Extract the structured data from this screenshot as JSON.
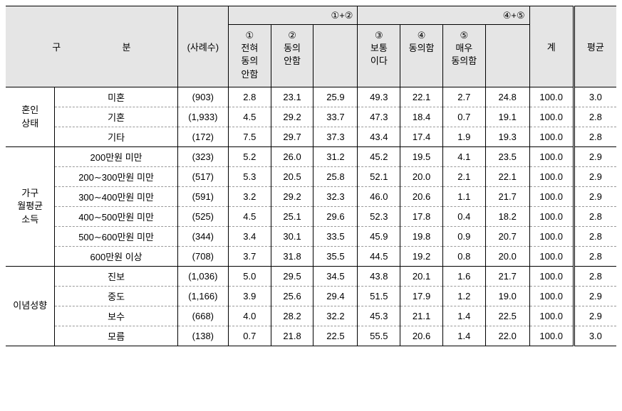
{
  "header": {
    "category_left": "구",
    "category_right": "분",
    "n_cases": "(사례수)",
    "col1": "①\n전혀\n동의\n안함",
    "col2": "②\n동의\n안함",
    "sum12": "①+②",
    "col3": "③\n보통\n이다",
    "col4": "④\n동의함",
    "col5": "⑤\n매우\n동의함",
    "sum45": "④+⑤",
    "total": "계",
    "avg": "평균"
  },
  "groups": [
    {
      "label": "혼인\n상태",
      "rows": [
        {
          "sub": "미혼",
          "n": "(903)",
          "v1": "2.8",
          "v2": "23.1",
          "s12": "25.9",
          "v3": "49.3",
          "v4": "22.1",
          "v5": "2.7",
          "s45": "24.8",
          "tot": "100.0",
          "avg": "3.0"
        },
        {
          "sub": "기혼",
          "n": "(1,933)",
          "v1": "4.5",
          "v2": "29.2",
          "s12": "33.7",
          "v3": "47.3",
          "v4": "18.4",
          "v5": "0.7",
          "s45": "19.1",
          "tot": "100.0",
          "avg": "2.8"
        },
        {
          "sub": "기타",
          "n": "(172)",
          "v1": "7.5",
          "v2": "29.7",
          "s12": "37.3",
          "v3": "43.4",
          "v4": "17.4",
          "v5": "1.9",
          "s45": "19.3",
          "tot": "100.0",
          "avg": "2.8"
        }
      ]
    },
    {
      "label": "가구\n월평균\n소득",
      "rows": [
        {
          "sub": "200만원 미만",
          "n": "(323)",
          "v1": "5.2",
          "v2": "26.0",
          "s12": "31.2",
          "v3": "45.2",
          "v4": "19.5",
          "v5": "4.1",
          "s45": "23.5",
          "tot": "100.0",
          "avg": "2.9"
        },
        {
          "sub": "200∼300만원 미만",
          "n": "(517)",
          "v1": "5.3",
          "v2": "20.5",
          "s12": "25.8",
          "v3": "52.1",
          "v4": "20.0",
          "v5": "2.1",
          "s45": "22.1",
          "tot": "100.0",
          "avg": "2.9"
        },
        {
          "sub": "300∼400만원 미만",
          "n": "(591)",
          "v1": "3.2",
          "v2": "29.2",
          "s12": "32.3",
          "v3": "46.0",
          "v4": "20.6",
          "v5": "1.1",
          "s45": "21.7",
          "tot": "100.0",
          "avg": "2.9"
        },
        {
          "sub": "400∼500만원 미만",
          "n": "(525)",
          "v1": "4.5",
          "v2": "25.1",
          "s12": "29.6",
          "v3": "52.3",
          "v4": "17.8",
          "v5": "0.4",
          "s45": "18.2",
          "tot": "100.0",
          "avg": "2.8"
        },
        {
          "sub": "500∼600만원 미만",
          "n": "(344)",
          "v1": "3.4",
          "v2": "30.1",
          "s12": "33.5",
          "v3": "45.9",
          "v4": "19.8",
          "v5": "0.9",
          "s45": "20.7",
          "tot": "100.0",
          "avg": "2.8"
        },
        {
          "sub": "600만원 이상",
          "n": "(708)",
          "v1": "3.7",
          "v2": "31.8",
          "s12": "35.5",
          "v3": "44.5",
          "v4": "19.2",
          "v5": "0.8",
          "s45": "20.0",
          "tot": "100.0",
          "avg": "2.8"
        }
      ]
    },
    {
      "label": "이념성향",
      "rows": [
        {
          "sub": "진보",
          "n": "(1,036)",
          "v1": "5.0",
          "v2": "29.5",
          "s12": "34.5",
          "v3": "43.8",
          "v4": "20.1",
          "v5": "1.6",
          "s45": "21.7",
          "tot": "100.0",
          "avg": "2.8"
        },
        {
          "sub": "중도",
          "n": "(1,166)",
          "v1": "3.9",
          "v2": "25.6",
          "s12": "29.4",
          "v3": "51.5",
          "v4": "17.9",
          "v5": "1.2",
          "s45": "19.0",
          "tot": "100.0",
          "avg": "2.9"
        },
        {
          "sub": "보수",
          "n": "(668)",
          "v1": "4.0",
          "v2": "28.2",
          "s12": "32.2",
          "v3": "45.3",
          "v4": "21.1",
          "v5": "1.4",
          "s45": "22.5",
          "tot": "100.0",
          "avg": "2.9"
        },
        {
          "sub": "모름",
          "n": "(138)",
          "v1": "0.7",
          "v2": "21.8",
          "s12": "22.5",
          "v3": "55.5",
          "v4": "20.6",
          "v5": "1.4",
          "s45": "22.0",
          "tot": "100.0",
          "avg": "3.0"
        }
      ]
    }
  ]
}
